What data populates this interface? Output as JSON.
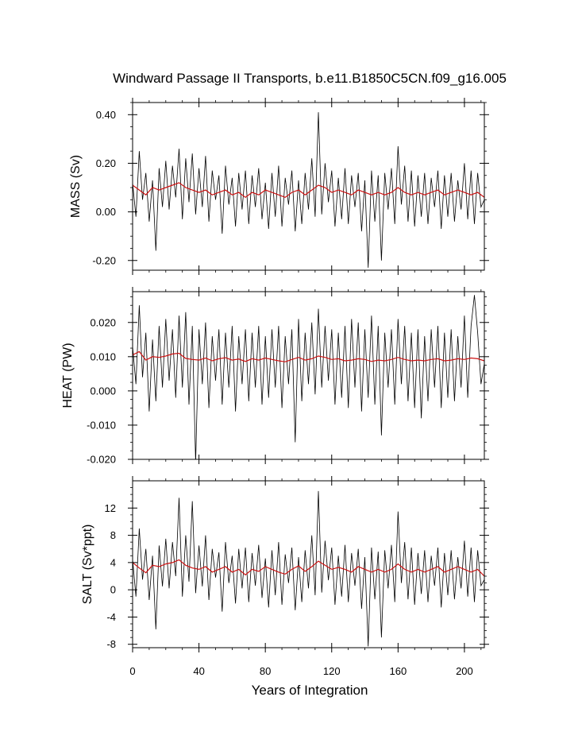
{
  "chart_data": [
    {
      "type": "line",
      "title": "Windward Passage II Transports, b.e11.B1850C5CN.f09_g16.005",
      "ylabel": "MASS (Sv)",
      "xlabel": "",
      "xlim": [
        0,
        212
      ],
      "ylim": [
        -0.24,
        0.45
      ],
      "yticks": [
        -0.2,
        0.0,
        0.2,
        0.4
      ],
      "ytick_labels": [
        "-0.20",
        "0.00",
        "0.20",
        "0.40"
      ],
      "x_tick_labels_shown": false,
      "series": [
        {
          "color": "#000000",
          "style": "monthly",
          "x": [
            0,
            2,
            4,
            6,
            8,
            10,
            12,
            14,
            16,
            18,
            20,
            22,
            24,
            26,
            28,
            30,
            32,
            34,
            36,
            38,
            40,
            42,
            44,
            46,
            48,
            50,
            52,
            54,
            56,
            58,
            60,
            62,
            64,
            66,
            68,
            70,
            72,
            74,
            76,
            78,
            80,
            82,
            84,
            86,
            88,
            90,
            92,
            94,
            96,
            98,
            100,
            102,
            104,
            106,
            108,
            110,
            112,
            114,
            116,
            118,
            120,
            122,
            124,
            126,
            128,
            130,
            132,
            134,
            136,
            138,
            140,
            142,
            144,
            146,
            148,
            150,
            152,
            154,
            156,
            158,
            160,
            162,
            164,
            166,
            168,
            170,
            172,
            174,
            176,
            178,
            180,
            182,
            184,
            186,
            188,
            190,
            192,
            194,
            196,
            198,
            200,
            202,
            204,
            206,
            208,
            210,
            212
          ],
          "y": [
            0.12,
            -0.02,
            0.25,
            0.05,
            0.16,
            -0.04,
            0.13,
            -0.16,
            0.18,
            0.02,
            0.21,
            0.01,
            0.19,
            0.06,
            0.26,
            -0.03,
            0.22,
            0.04,
            0.24,
            -0.01,
            0.18,
            0.02,
            0.23,
            -0.04,
            0.17,
            0.05,
            0.15,
            -0.09,
            0.19,
            0.03,
            0.14,
            -0.06,
            0.16,
            0.01,
            0.17,
            -0.05,
            0.15,
            0.02,
            0.18,
            -0.03,
            0.12,
            -0.07,
            0.16,
            -0.02,
            0.19,
            -0.06,
            0.14,
            0.03,
            0.17,
            -0.08,
            0.13,
            -0.05,
            0.16,
            0.01,
            0.22,
            -0.02,
            0.41,
            -0.01,
            0.2,
            0.04,
            0.17,
            -0.06,
            0.14,
            -0.03,
            0.18,
            -0.05,
            0.15,
            0.02,
            0.16,
            -0.08,
            0.13,
            -0.23,
            0.17,
            -0.04,
            0.15,
            -0.2,
            0.16,
            0.01,
            0.18,
            -0.05,
            0.27,
            0.03,
            0.19,
            -0.04,
            0.17,
            -0.06,
            0.15,
            -0.02,
            0.16,
            -0.05,
            0.14,
            0.02,
            0.17,
            -0.07,
            0.15,
            -0.02,
            0.16,
            -0.04,
            0.13,
            0.01,
            0.2,
            -0.03,
            0.17,
            -0.05,
            0.16,
            0.02,
            0.05
          ]
        },
        {
          "color": "#cc1111",
          "style": "annual",
          "x": [
            0,
            4,
            8,
            12,
            16,
            20,
            24,
            28,
            32,
            36,
            40,
            44,
            48,
            52,
            56,
            60,
            64,
            68,
            72,
            76,
            80,
            84,
            88,
            92,
            96,
            100,
            104,
            108,
            112,
            116,
            120,
            124,
            128,
            132,
            136,
            140,
            144,
            148,
            152,
            156,
            160,
            164,
            168,
            172,
            176,
            180,
            184,
            188,
            192,
            196,
            200,
            204,
            208,
            212
          ],
          "y": [
            0.11,
            0.09,
            0.07,
            0.1,
            0.09,
            0.1,
            0.11,
            0.12,
            0.1,
            0.09,
            0.08,
            0.09,
            0.07,
            0.08,
            0.09,
            0.07,
            0.08,
            0.06,
            0.08,
            0.07,
            0.09,
            0.08,
            0.07,
            0.06,
            0.08,
            0.09,
            0.07,
            0.09,
            0.11,
            0.1,
            0.08,
            0.09,
            0.08,
            0.07,
            0.09,
            0.08,
            0.07,
            0.08,
            0.07,
            0.08,
            0.1,
            0.08,
            0.07,
            0.08,
            0.07,
            0.08,
            0.09,
            0.07,
            0.08,
            0.09,
            0.08,
            0.07,
            0.08,
            0.06
          ]
        }
      ]
    },
    {
      "type": "line",
      "title": "",
      "ylabel": "HEAT (PW)",
      "xlabel": "",
      "xlim": [
        0,
        212
      ],
      "ylim": [
        -0.02,
        0.029
      ],
      "yticks": [
        -0.02,
        -0.01,
        0.0,
        0.01,
        0.02
      ],
      "ytick_labels": [
        "-0.020",
        "-0.010",
        "0.000",
        "0.010",
        "0.020"
      ],
      "x_tick_labels_shown": false,
      "series": [
        {
          "color": "#000000",
          "style": "monthly",
          "x": [
            0,
            2,
            4,
            6,
            8,
            10,
            12,
            14,
            16,
            18,
            20,
            22,
            24,
            26,
            28,
            30,
            32,
            34,
            36,
            38,
            40,
            42,
            44,
            46,
            48,
            50,
            52,
            54,
            56,
            58,
            60,
            62,
            64,
            66,
            68,
            70,
            72,
            74,
            76,
            78,
            80,
            82,
            84,
            86,
            88,
            90,
            92,
            94,
            96,
            98,
            100,
            102,
            104,
            106,
            108,
            110,
            112,
            114,
            116,
            118,
            120,
            122,
            124,
            126,
            128,
            130,
            132,
            134,
            136,
            138,
            140,
            142,
            144,
            146,
            148,
            150,
            152,
            154,
            156,
            158,
            160,
            162,
            164,
            166,
            168,
            170,
            172,
            174,
            176,
            178,
            180,
            182,
            184,
            186,
            188,
            190,
            192,
            194,
            196,
            198,
            200,
            202,
            204,
            206,
            208,
            210,
            212
          ],
          "y": [
            0.013,
            0.002,
            0.025,
            0.004,
            0.017,
            -0.006,
            0.015,
            -0.003,
            0.019,
            0.001,
            0.021,
            0.003,
            0.018,
            -0.002,
            0.022,
            0.001,
            0.023,
            -0.004,
            0.019,
            -0.021,
            0.018,
            0.002,
            0.02,
            -0.005,
            0.016,
            0.003,
            0.018,
            -0.004,
            0.017,
            0.001,
            0.019,
            -0.006,
            0.016,
            0.002,
            0.018,
            -0.003,
            0.017,
            0.001,
            0.019,
            -0.004,
            0.016,
            -0.002,
            0.018,
            0.001,
            0.019,
            -0.005,
            0.016,
            0.002,
            0.018,
            -0.015,
            0.021,
            -0.003,
            0.017,
            0.002,
            0.02,
            -0.001,
            0.024,
            0.001,
            0.019,
            0.003,
            0.018,
            -0.004,
            0.017,
            -0.002,
            0.019,
            -0.005,
            0.021,
            0.001,
            0.02,
            -0.006,
            0.018,
            -0.002,
            0.022,
            -0.004,
            0.019,
            -0.013,
            0.017,
            0.001,
            0.018,
            -0.004,
            0.021,
            0.002,
            0.019,
            -0.003,
            0.017,
            -0.005,
            0.018,
            -0.008,
            0.016,
            -0.003,
            0.018,
            0.001,
            0.019,
            -0.005,
            0.017,
            -0.002,
            0.018,
            -0.003,
            0.016,
            0.001,
            0.022,
            -0.002,
            0.019,
            0.028,
            0.017,
            0.002,
            0.008
          ]
        },
        {
          "color": "#cc1111",
          "style": "annual",
          "x": [
            0,
            4,
            8,
            12,
            16,
            20,
            24,
            28,
            32,
            36,
            40,
            44,
            48,
            52,
            56,
            60,
            64,
            68,
            72,
            76,
            80,
            84,
            88,
            92,
            96,
            100,
            104,
            108,
            112,
            116,
            120,
            124,
            128,
            132,
            136,
            140,
            144,
            148,
            152,
            156,
            160,
            164,
            168,
            172,
            176,
            180,
            184,
            188,
            192,
            196,
            200,
            204,
            208,
            212
          ],
          "y": [
            0.0105,
            0.0115,
            0.009,
            0.01,
            0.0098,
            0.0102,
            0.0108,
            0.011,
            0.0095,
            0.0092,
            0.009,
            0.0096,
            0.0088,
            0.0094,
            0.0097,
            0.009,
            0.0093,
            0.0086,
            0.0094,
            0.009,
            0.0096,
            0.0092,
            0.0088,
            0.0085,
            0.0092,
            0.0098,
            0.009,
            0.0094,
            0.0102,
            0.0098,
            0.0092,
            0.0094,
            0.0088,
            0.009,
            0.0094,
            0.0092,
            0.0086,
            0.009,
            0.0088,
            0.0092,
            0.0098,
            0.0092,
            0.0088,
            0.009,
            0.0088,
            0.0092,
            0.0094,
            0.0088,
            0.009,
            0.0094,
            0.0092,
            0.0096,
            0.0094,
            0.0088
          ]
        }
      ]
    },
    {
      "type": "line",
      "title": "",
      "ylabel": "SALT (Sv*ppt)",
      "xlabel": "Years of Integration",
      "xlim": [
        0,
        212
      ],
      "ylim": [
        -8.5,
        16
      ],
      "xticks": [
        0,
        40,
        80,
        120,
        160,
        200
      ],
      "xtick_labels": [
        "0",
        "40",
        "80",
        "120",
        "160",
        "200"
      ],
      "yticks": [
        -8,
        -4,
        0,
        4,
        8,
        12
      ],
      "ytick_labels": [
        "-8",
        "-4",
        "0",
        "4",
        "8",
        "12"
      ],
      "x_tick_labels_shown": true,
      "series": [
        {
          "color": "#000000",
          "style": "monthly",
          "x": [
            0,
            2,
            4,
            6,
            8,
            10,
            12,
            14,
            16,
            18,
            20,
            22,
            24,
            26,
            28,
            30,
            32,
            34,
            36,
            38,
            40,
            42,
            44,
            46,
            48,
            50,
            52,
            54,
            56,
            58,
            60,
            62,
            64,
            66,
            68,
            70,
            72,
            74,
            76,
            78,
            80,
            82,
            84,
            86,
            88,
            90,
            92,
            94,
            96,
            98,
            100,
            102,
            104,
            106,
            108,
            110,
            112,
            114,
            116,
            118,
            120,
            122,
            124,
            126,
            128,
            130,
            132,
            134,
            136,
            138,
            140,
            142,
            144,
            146,
            148,
            150,
            152,
            154,
            156,
            158,
            160,
            162,
            164,
            166,
            168,
            170,
            172,
            174,
            176,
            178,
            180,
            182,
            184,
            186,
            188,
            190,
            192,
            194,
            196,
            198,
            200,
            202,
            204,
            206,
            208,
            210,
            212
          ],
          "y": [
            4.5,
            -1.0,
            9.0,
            1.5,
            6.0,
            -1.5,
            5.0,
            -5.8,
            6.5,
            0.5,
            7.5,
            0.2,
            7.0,
            2.0,
            13.5,
            -1.0,
            8.0,
            1.2,
            13.0,
            -0.5,
            6.5,
            0.5,
            8.0,
            -1.5,
            6.0,
            1.8,
            5.5,
            -3.2,
            7.0,
            1.0,
            5.0,
            -2.0,
            6.0,
            0.2,
            6.2,
            -1.8,
            5.4,
            0.6,
            6.6,
            -1.2,
            4.6,
            -2.6,
            5.8,
            -0.8,
            7.0,
            -2.2,
            5.2,
            1.0,
            6.2,
            -3.0,
            4.8,
            -1.8,
            5.8,
            0.2,
            8.0,
            -0.8,
            14.5,
            -0.4,
            7.2,
            1.4,
            6.2,
            -2.2,
            5.0,
            -1.0,
            6.6,
            -1.8,
            5.4,
            0.6,
            6.0,
            -2.8,
            4.8,
            -8.3,
            6.2,
            -1.4,
            5.6,
            -7.0,
            5.8,
            0.2,
            6.6,
            -1.8,
            11.5,
            1.0,
            7.0,
            -1.4,
            6.2,
            -2.2,
            5.4,
            -0.6,
            5.8,
            -1.8,
            5.0,
            0.6,
            6.2,
            -2.6,
            5.4,
            -0.8,
            5.8,
            -1.4,
            4.8,
            0.2,
            7.2,
            -1.0,
            6.2,
            -1.8,
            5.8,
            0.6,
            1.5
          ]
        },
        {
          "color": "#cc1111",
          "style": "annual",
          "x": [
            0,
            4,
            8,
            12,
            16,
            20,
            24,
            28,
            32,
            36,
            40,
            44,
            48,
            52,
            56,
            60,
            64,
            68,
            72,
            76,
            80,
            84,
            88,
            92,
            96,
            100,
            104,
            108,
            112,
            116,
            120,
            124,
            128,
            132,
            136,
            140,
            144,
            148,
            152,
            156,
            160,
            164,
            168,
            172,
            176,
            180,
            184,
            188,
            192,
            196,
            200,
            204,
            208,
            212
          ],
          "y": [
            4.0,
            3.2,
            2.5,
            3.6,
            3.4,
            3.8,
            4.0,
            4.4,
            3.6,
            3.2,
            3.0,
            3.4,
            2.6,
            3.0,
            3.4,
            2.6,
            3.0,
            2.2,
            3.0,
            2.7,
            3.4,
            3.0,
            2.6,
            2.3,
            3.0,
            3.5,
            2.7,
            3.4,
            4.2,
            3.6,
            3.0,
            3.3,
            3.0,
            2.6,
            3.4,
            3.0,
            2.6,
            3.0,
            2.6,
            3.0,
            3.8,
            3.0,
            2.6,
            3.0,
            2.6,
            3.0,
            3.4,
            2.6,
            3.0,
            3.4,
            3.0,
            2.6,
            3.0,
            2.0
          ]
        }
      ]
    }
  ]
}
